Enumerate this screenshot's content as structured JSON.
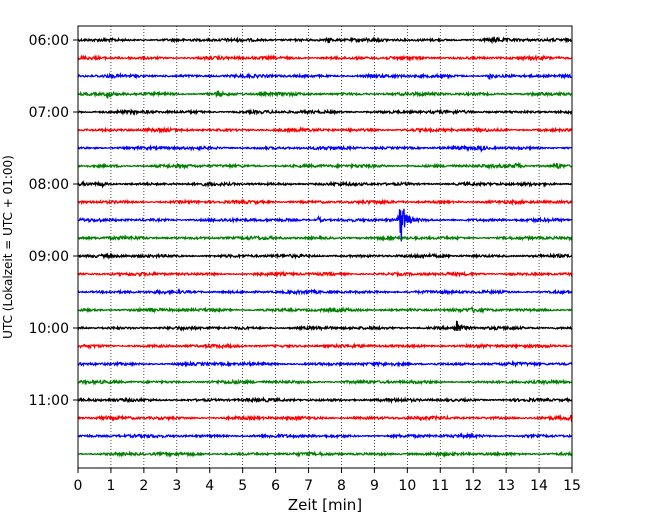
{
  "chart_data": {
    "type": "line",
    "title": "",
    "xlabel": "Zeit  [min]",
    "ylabel": "UTC (Lokalzeit = UTC + 01:00)",
    "xlim": [
      0,
      15
    ],
    "x_ticks": [
      0,
      1,
      2,
      3,
      4,
      5,
      6,
      7,
      8,
      9,
      10,
      11,
      12,
      13,
      14,
      15
    ],
    "y_tick_labels": [
      "06:00",
      "07:00",
      "08:00",
      "09:00",
      "10:00",
      "11:00"
    ],
    "grid": "vertical-dotted",
    "legend": "none",
    "trace_colors": [
      "#000000",
      "#ff0000",
      "#0000ff",
      "#008000"
    ],
    "traces": [
      {
        "start": "06:00",
        "color": "#000000",
        "events": [
          {
            "t": 7.6,
            "amp": 0.35
          },
          {
            "t": 12.6,
            "amp": 0.3
          }
        ]
      },
      {
        "start": "06:15",
        "color": "#ff0000",
        "events": []
      },
      {
        "start": "06:30",
        "color": "#0000ff",
        "events": [
          {
            "t": 12.5,
            "amp": 0.35
          }
        ]
      },
      {
        "start": "06:45",
        "color": "#008000",
        "events": [
          {
            "t": 0.9,
            "amp": 0.4
          },
          {
            "t": 4.2,
            "amp": 0.3
          }
        ]
      },
      {
        "start": "07:00",
        "color": "#000000",
        "events": []
      },
      {
        "start": "07:15",
        "color": "#ff0000",
        "events": []
      },
      {
        "start": "07:30",
        "color": "#0000ff",
        "events": [
          {
            "t": 12.2,
            "amp": 0.3
          }
        ]
      },
      {
        "start": "07:45",
        "color": "#008000",
        "events": [
          {
            "t": 13.3,
            "amp": 0.3
          },
          {
            "t": 14.5,
            "amp": 0.35
          }
        ]
      },
      {
        "start": "08:00",
        "color": "#000000",
        "events": [
          {
            "t": 0.7,
            "amp": 0.3
          }
        ]
      },
      {
        "start": "08:15",
        "color": "#ff0000",
        "events": []
      },
      {
        "start": "08:30",
        "color": "#0000ff",
        "events": [
          {
            "t": 9.8,
            "amp": 2.8
          },
          {
            "t": 7.3,
            "amp": 0.3
          }
        ]
      },
      {
        "start": "08:45",
        "color": "#008000",
        "events": []
      },
      {
        "start": "09:00",
        "color": "#000000",
        "events": []
      },
      {
        "start": "09:15",
        "color": "#ff0000",
        "events": []
      },
      {
        "start": "09:30",
        "color": "#0000ff",
        "events": []
      },
      {
        "start": "09:45",
        "color": "#008000",
        "events": [
          {
            "t": 12.0,
            "amp": 0.25
          }
        ]
      },
      {
        "start": "10:00",
        "color": "#000000",
        "events": [
          {
            "t": 11.5,
            "amp": 0.9
          }
        ]
      },
      {
        "start": "10:15",
        "color": "#ff0000",
        "events": []
      },
      {
        "start": "10:30",
        "color": "#0000ff",
        "events": []
      },
      {
        "start": "10:45",
        "color": "#008000",
        "events": []
      },
      {
        "start": "11:00",
        "color": "#000000",
        "events": []
      },
      {
        "start": "11:15",
        "color": "#ff0000",
        "events": [
          {
            "t": 15.0,
            "amp": 0.5
          }
        ]
      },
      {
        "start": "11:30",
        "color": "#0000ff",
        "events": []
      },
      {
        "start": "11:45",
        "color": "#008000",
        "events": []
      }
    ]
  }
}
